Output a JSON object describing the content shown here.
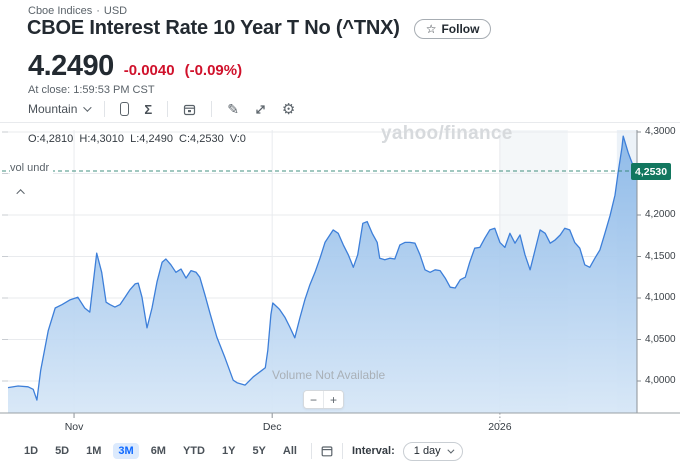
{
  "header": {
    "exchange": "Cboe Indices",
    "separator": "·",
    "currency": "USD",
    "title": "CBOE Interest Rate 10 Year T No (^TNX)",
    "follow_label": "Follow"
  },
  "quote": {
    "price": "4.2490",
    "change": "-0.0040",
    "change_pct": "(-0.09%)",
    "at_close": "At close: 1:59:53 PM CST"
  },
  "icons": {
    "star": "☆",
    "sigma": "Σ",
    "pencil": "✎",
    "gear": "⚙",
    "minus": "−",
    "plus": "+"
  },
  "chart_toolbar": {
    "chart_type": "Mountain"
  },
  "chart": {
    "ohlc_text": "O:4,2810  H:4,3010  L:4,2490  C:4,2530  V:0",
    "vol_label": "vol undr",
    "watermark": "yahoo/finance",
    "volume_message": "Volume Not Available",
    "price_badge": "4,2530"
  },
  "colors": {
    "negative_red": "#d0112b",
    "accent_blue": "#0f69ff",
    "line_blue": "#3d7fd9",
    "fill_top": "#86b5e7",
    "fill_bottom": "#d7e7f7",
    "badge_green": "#12775f",
    "dash_teal": "#2f8473",
    "gridline": "#e9ebee",
    "axis": "#9aa0a5"
  },
  "chart_data": {
    "type": "area",
    "title": "CBOE Interest Rate 10 Year T No (^TNX) price, 3M range, 1 day interval",
    "ylim": [
      3.962,
      4.302
    ],
    "current_price_line": 4.253,
    "y_ticks": [
      {
        "v": 4.3,
        "label": "4,3000"
      },
      {
        "v": 4.25,
        "label": ""
      },
      {
        "v": 4.2,
        "label": "4,2000"
      },
      {
        "v": 4.15,
        "label": "4,1500"
      },
      {
        "v": 4.1,
        "label": "4,1000"
      },
      {
        "v": 4.05,
        "label": "4,0500"
      },
      {
        "v": 4.0,
        "label": "4,0000"
      }
    ],
    "x_axis_labels": [
      {
        "f": 0.105,
        "label": "Nov",
        "tick": "solid"
      },
      {
        "f": 0.42,
        "label": "Dec",
        "tick": "solid"
      },
      {
        "f": 0.782,
        "label": "2026",
        "tick": "dotted"
      }
    ],
    "shaded_bands": [
      {
        "f0": 0.781,
        "f1": 0.89,
        "fill": "#edf1f5"
      },
      {
        "f0": 0.968,
        "f1": 1.0,
        "fill": "#dfe9f3"
      }
    ],
    "points": [
      [
        0.0,
        3.992
      ],
      [
        0.016,
        3.994
      ],
      [
        0.032,
        3.993
      ],
      [
        0.04,
        3.99
      ],
      [
        0.046,
        3.977
      ],
      [
        0.052,
        4.013
      ],
      [
        0.064,
        4.061
      ],
      [
        0.075,
        4.088
      ],
      [
        0.086,
        4.092
      ],
      [
        0.099,
        4.098
      ],
      [
        0.111,
        4.101
      ],
      [
        0.122,
        4.088
      ],
      [
        0.13,
        4.083
      ],
      [
        0.141,
        4.154
      ],
      [
        0.149,
        4.131
      ],
      [
        0.156,
        4.095
      ],
      [
        0.162,
        4.092
      ],
      [
        0.17,
        4.089
      ],
      [
        0.178,
        4.092
      ],
      [
        0.186,
        4.101
      ],
      [
        0.194,
        4.11
      ],
      [
        0.202,
        4.117
      ],
      [
        0.207,
        4.118
      ],
      [
        0.213,
        4.101
      ],
      [
        0.221,
        4.064
      ],
      [
        0.229,
        4.088
      ],
      [
        0.237,
        4.12
      ],
      [
        0.245,
        4.143
      ],
      [
        0.251,
        4.147
      ],
      [
        0.259,
        4.14
      ],
      [
        0.267,
        4.131
      ],
      [
        0.275,
        4.135
      ],
      [
        0.283,
        4.124
      ],
      [
        0.291,
        4.133
      ],
      [
        0.299,
        4.131
      ],
      [
        0.305,
        4.125
      ],
      [
        0.313,
        4.104
      ],
      [
        0.321,
        4.082
      ],
      [
        0.332,
        4.053
      ],
      [
        0.345,
        4.028
      ],
      [
        0.358,
        4.001
      ],
      [
        0.364,
        3.998
      ],
      [
        0.377,
        3.995
      ],
      [
        0.39,
        4.005
      ],
      [
        0.404,
        4.013
      ],
      [
        0.409,
        4.016
      ],
      [
        0.413,
        4.037
      ],
      [
        0.418,
        4.08
      ],
      [
        0.421,
        4.094
      ],
      [
        0.428,
        4.089
      ],
      [
        0.432,
        4.086
      ],
      [
        0.44,
        4.077
      ],
      [
        0.448,
        4.065
      ],
      [
        0.456,
        4.052
      ],
      [
        0.464,
        4.076
      ],
      [
        0.472,
        4.098
      ],
      [
        0.48,
        4.116
      ],
      [
        0.488,
        4.131
      ],
      [
        0.496,
        4.148
      ],
      [
        0.504,
        4.167
      ],
      [
        0.517,
        4.182
      ],
      [
        0.525,
        4.178
      ],
      [
        0.533,
        4.164
      ],
      [
        0.541,
        4.152
      ],
      [
        0.549,
        4.137
      ],
      [
        0.556,
        4.152
      ],
      [
        0.564,
        4.19
      ],
      [
        0.571,
        4.192
      ],
      [
        0.579,
        4.178
      ],
      [
        0.587,
        4.167
      ],
      [
        0.591,
        4.148
      ],
      [
        0.599,
        4.146
      ],
      [
        0.607,
        4.148
      ],
      [
        0.615,
        4.147
      ],
      [
        0.623,
        4.164
      ],
      [
        0.631,
        4.167
      ],
      [
        0.639,
        4.167
      ],
      [
        0.647,
        4.166
      ],
      [
        0.655,
        4.152
      ],
      [
        0.663,
        4.134
      ],
      [
        0.671,
        4.131
      ],
      [
        0.679,
        4.134
      ],
      [
        0.687,
        4.133
      ],
      [
        0.695,
        4.124
      ],
      [
        0.703,
        4.113
      ],
      [
        0.711,
        4.112
      ],
      [
        0.719,
        4.122
      ],
      [
        0.727,
        4.125
      ],
      [
        0.734,
        4.143
      ],
      [
        0.742,
        4.16
      ],
      [
        0.75,
        4.161
      ],
      [
        0.758,
        4.172
      ],
      [
        0.766,
        4.182
      ],
      [
        0.774,
        4.184
      ],
      [
        0.782,
        4.167
      ],
      [
        0.79,
        4.161
      ],
      [
        0.798,
        4.178
      ],
      [
        0.806,
        4.166
      ],
      [
        0.814,
        4.176
      ],
      [
        0.822,
        4.152
      ],
      [
        0.83,
        4.134
      ],
      [
        0.838,
        4.158
      ],
      [
        0.846,
        4.182
      ],
      [
        0.854,
        4.178
      ],
      [
        0.862,
        4.166
      ],
      [
        0.87,
        4.17
      ],
      [
        0.878,
        4.176
      ],
      [
        0.885,
        4.184
      ],
      [
        0.893,
        4.182
      ],
      [
        0.901,
        4.167
      ],
      [
        0.909,
        4.16
      ],
      [
        0.917,
        4.14
      ],
      [
        0.925,
        4.137
      ],
      [
        0.933,
        4.148
      ],
      [
        0.941,
        4.158
      ],
      [
        0.949,
        4.178
      ],
      [
        0.957,
        4.199
      ],
      [
        0.965,
        4.224
      ],
      [
        0.97,
        4.251
      ],
      [
        0.976,
        4.281
      ],
      [
        0.978,
        4.295
      ],
      [
        0.986,
        4.275
      ],
      [
        0.994,
        4.259
      ],
      [
        1.0,
        4.253
      ]
    ]
  },
  "bottom_toolbar": {
    "ranges": [
      "1D",
      "5D",
      "1M",
      "3M",
      "6M",
      "YTD",
      "1Y",
      "5Y",
      "All"
    ],
    "active_range": "3M",
    "interval_label": "Interval:",
    "interval_value": "1 day"
  }
}
